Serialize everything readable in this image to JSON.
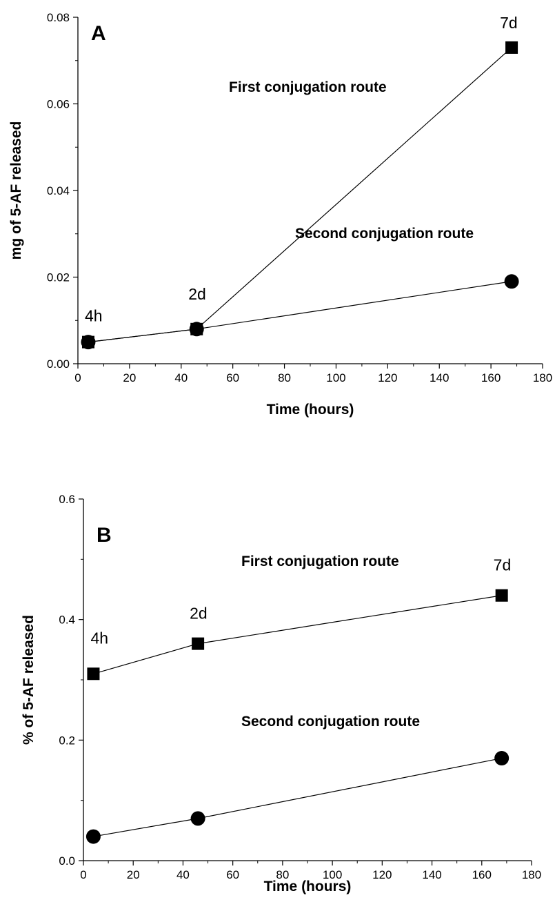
{
  "chart_data": [
    {
      "type": "line",
      "panel_label": "A",
      "xlabel": "Time (hours)",
      "ylabel": "mg of 5-AF released",
      "xlim": [
        0,
        180
      ],
      "ylim": [
        0,
        0.08
      ],
      "x_ticks": [
        "0",
        "20",
        "40",
        "60",
        "80",
        "100",
        "120",
        "140",
        "160",
        "180"
      ],
      "y_ticks": [
        "0.00",
        "0.02",
        "0.04",
        "0.06",
        "0.08"
      ],
      "grid": false,
      "series": [
        {
          "name": "First conjugation route",
          "marker": "square",
          "x": [
            4,
            46,
            168
          ],
          "values": [
            0.005,
            0.008,
            0.073
          ]
        },
        {
          "name": "Second conjugation route",
          "marker": "circle",
          "x": [
            4,
            46,
            168
          ],
          "values": [
            0.005,
            0.008,
            0.019
          ]
        }
      ],
      "point_labels": [
        {
          "text": "4h",
          "x": 4
        },
        {
          "text": "2d",
          "x": 46
        },
        {
          "text": "7d",
          "x": 168
        }
      ]
    },
    {
      "type": "line",
      "panel_label": "B",
      "xlabel": "Time (hours)",
      "ylabel": "% of 5-AF released",
      "xlim": [
        0,
        180
      ],
      "ylim": [
        0,
        0.6
      ],
      "x_ticks": [
        "0",
        "20",
        "40",
        "60",
        "80",
        "100",
        "120",
        "140",
        "160",
        "180"
      ],
      "y_ticks": [
        "0.0",
        "0.2",
        "0.4",
        "0.6"
      ],
      "grid": false,
      "series": [
        {
          "name": "First conjugation route",
          "marker": "square",
          "x": [
            4,
            46,
            168
          ],
          "values": [
            0.31,
            0.36,
            0.44
          ]
        },
        {
          "name": "Second conjugation route",
          "marker": "circle",
          "x": [
            4,
            46,
            168
          ],
          "values": [
            0.04,
            0.07,
            0.17
          ]
        }
      ],
      "point_labels": [
        {
          "text": "4h",
          "x": 4
        },
        {
          "text": "2d",
          "x": 46
        },
        {
          "text": "7d",
          "x": 168
        }
      ]
    }
  ]
}
